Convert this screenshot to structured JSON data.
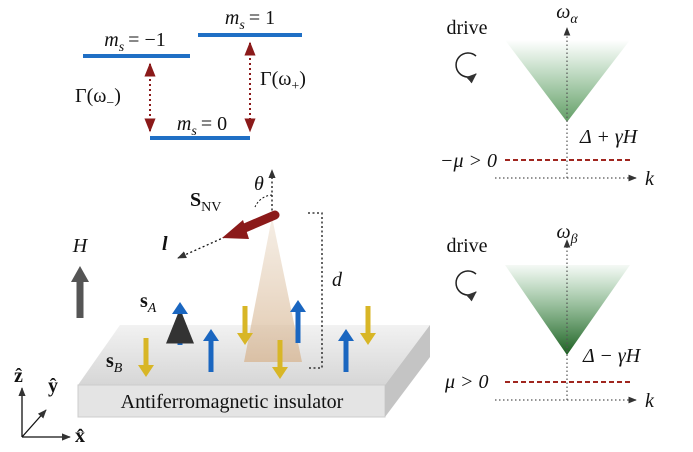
{
  "levels": [
    {
      "symbol": "m",
      "sub": "s",
      "eq": "= −1"
    },
    {
      "symbol": "m",
      "sub": "s",
      "eq": "= 1"
    },
    {
      "symbol": "m",
      "sub": "s",
      "eq": "= 0"
    }
  ],
  "rates": [
    {
      "pre": "Γ(ω",
      "sub": "−",
      "post": ")"
    },
    {
      "pre": "Γ(ω",
      "sub": "+",
      "post": ")"
    }
  ],
  "panels": [
    {
      "drive": "drive",
      "axis": {
        "symbol": "ω",
        "sub": "α"
      },
      "gap": "Δ + γH",
      "chem": "−μ > 0",
      "k": "k"
    },
    {
      "drive": "drive",
      "axis": {
        "symbol": "ω",
        "sub": "β"
      },
      "gap": "Δ − γH",
      "chem": "μ > 0",
      "k": "k"
    }
  ],
  "setup": {
    "spin": {
      "symbol": "S",
      "sub": "NV"
    },
    "theta": "θ",
    "l": "l",
    "d": "d",
    "field": "H",
    "sA": {
      "symbol": "s",
      "sub": "A"
    },
    "sB": {
      "symbol": "s",
      "sub": "B"
    },
    "slab": "Antiferromagnetic insulator",
    "axes": {
      "z": "ẑ",
      "y": "ŷ",
      "x": "x̂"
    }
  }
}
